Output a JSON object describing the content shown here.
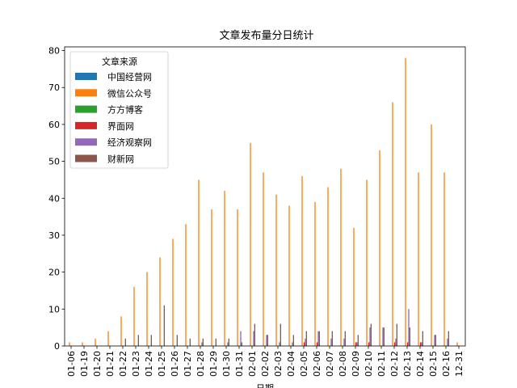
{
  "chart_data": {
    "type": "bar",
    "title": "文章发布量分日统计",
    "xlabel": "日期",
    "ylabel": "",
    "ylim": [
      0,
      81
    ],
    "yticks": [
      0,
      10,
      20,
      30,
      40,
      50,
      60,
      70,
      80
    ],
    "legend_title": "文章来源",
    "legend_placement": "top-left",
    "grid": false,
    "categories": [
      "01-06",
      "01-19",
      "01-20",
      "01-21",
      "01-22",
      "01-23",
      "01-24",
      "01-25",
      "01-26",
      "01-27",
      "01-28",
      "01-29",
      "01-30",
      "01-31",
      "02-01",
      "02-02",
      "02-03",
      "02-04",
      "02-05",
      "02-06",
      "02-07",
      "02-08",
      "02-09",
      "02-10",
      "02-11",
      "02-12",
      "02-13",
      "02-14",
      "02-15",
      "02-16",
      "12-31"
    ],
    "series": [
      {
        "name": "中国经营网",
        "color": "#1f77b4",
        "values": [
          0,
          0,
          0,
          0,
          0,
          0,
          0,
          0,
          0,
          0,
          0,
          0,
          0,
          0,
          0,
          0,
          0,
          0,
          0,
          0,
          0,
          0,
          0,
          0,
          0,
          0,
          0,
          0,
          0,
          0,
          0
        ]
      },
      {
        "name": "微信公众号",
        "color": "#ff7f0e",
        "values": [
          1,
          1,
          2,
          4,
          8,
          16,
          20,
          24,
          29,
          33,
          45,
          37,
          42,
          37,
          55,
          47,
          41,
          38,
          46,
          39,
          43,
          48,
          32,
          45,
          53,
          66,
          78,
          47,
          60,
          47,
          1
        ]
      },
      {
        "name": "方方博客",
        "color": "#2ca02c",
        "values": [
          0,
          0,
          0,
          0,
          0,
          0,
          0,
          0,
          0,
          0,
          0,
          0,
          0,
          0,
          0,
          0,
          0,
          0,
          0,
          0,
          0,
          0,
          0,
          0,
          0,
          0,
          0,
          0,
          0,
          0,
          0
        ]
      },
      {
        "name": "界面网",
        "color": "#d62728",
        "values": [
          0,
          0,
          0,
          0,
          0,
          0,
          0,
          0,
          0,
          0,
          0,
          0,
          0,
          0,
          0,
          0,
          0,
          0,
          1,
          1,
          0,
          0,
          1,
          1,
          0,
          1,
          1,
          1,
          0,
          0,
          0
        ]
      },
      {
        "name": "经济观察网",
        "color": "#9467bd",
        "values": [
          0,
          0,
          0,
          0,
          0,
          0,
          0,
          0,
          0,
          0,
          1,
          0,
          1,
          4,
          4,
          3,
          1,
          1,
          2,
          4,
          2,
          2,
          1,
          5,
          5,
          2,
          10,
          1,
          3,
          2,
          0
        ]
      },
      {
        "name": "财新网",
        "color": "#8c564b",
        "values": [
          0,
          0,
          0,
          0,
          2,
          3,
          3,
          11,
          3,
          2,
          2,
          2,
          2,
          1,
          6,
          3,
          6,
          3,
          4,
          4,
          4,
          4,
          3,
          6,
          5,
          6,
          5,
          4,
          3,
          4,
          0
        ]
      }
    ]
  }
}
